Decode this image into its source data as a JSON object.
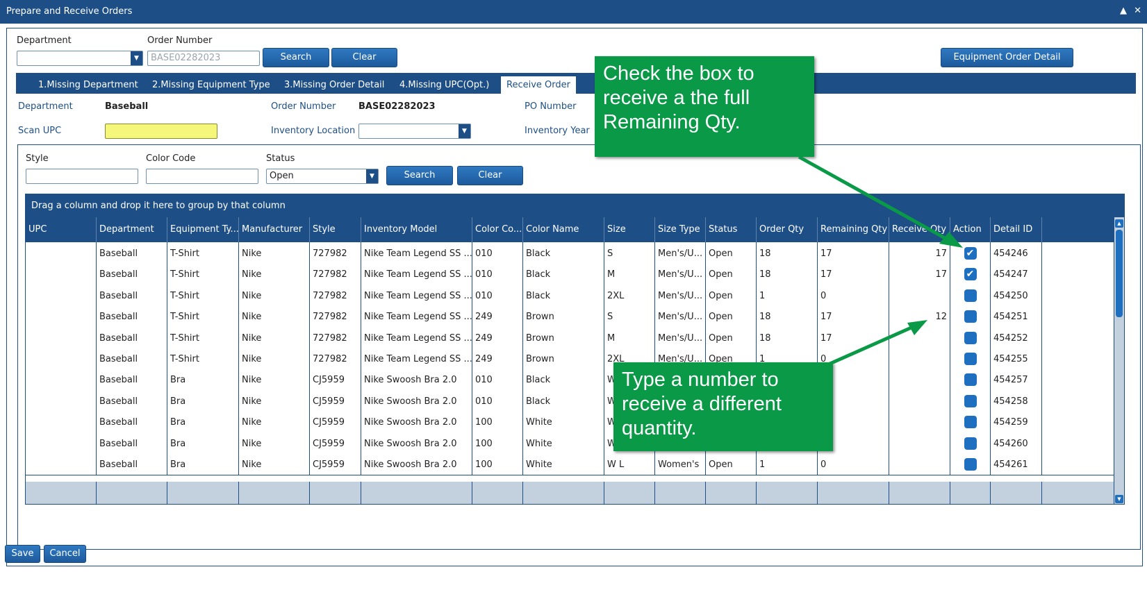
{
  "window": {
    "title": "Prepare and Receive Orders",
    "controls": [
      "▲",
      "✕"
    ]
  },
  "header": {
    "department_label": "Department",
    "department_value": "",
    "order_number_label": "Order Number",
    "order_number_placeholder": "BASE02282023",
    "search_label": "Search",
    "clear_label": "Clear",
    "equipment_detail_label": "Equipment Order Detail"
  },
  "tabs": [
    {
      "label": "1.Missing Department"
    },
    {
      "label": "2.Missing Equipment Type"
    },
    {
      "label": "3.Missing Order Detail"
    },
    {
      "label": "4.Missing UPC(Opt.)"
    },
    {
      "label": "Receive Order",
      "active": true
    }
  ],
  "info": {
    "department_label": "Department",
    "department_value": "Baseball",
    "order_number_label": "Order Number",
    "order_number_value": "BASE02282023",
    "po_number_label": "PO Number",
    "scan_upc_label": "Scan UPC",
    "inventory_location_label": "Inventory Location",
    "inventory_year_label": "Inventory Year"
  },
  "filters": {
    "style_label": "Style",
    "color_code_label": "Color Code",
    "status_label": "Status",
    "status_value": "Open",
    "search_label": "Search",
    "clear_label": "Clear"
  },
  "grid": {
    "group_hint": "Drag a column and drop it here to group by that column",
    "columns": [
      "UPC",
      "Department",
      "Equipment Ty...",
      "Manufacturer",
      "Style",
      "Inventory Model",
      "Color Co...",
      "Color Name",
      "Size",
      "Size Type",
      "Status",
      "Order Qty",
      "Remaining Qty",
      "Receive Qty",
      "Action",
      "Detail ID"
    ],
    "rows": [
      {
        "upc": "",
        "department": "Baseball",
        "equipment": "T-Shirt",
        "manufacturer": "Nike",
        "style": "727982",
        "model": "Nike Team Legend SS ...",
        "color_code": "010",
        "color_name": "Black",
        "size": "S",
        "size_type": "Men's/U...",
        "status": "Open",
        "order_qty": "18",
        "remaining_qty": "17",
        "receive_qty": "17",
        "checked": true,
        "detail_id": "454246"
      },
      {
        "upc": "",
        "department": "Baseball",
        "equipment": "T-Shirt",
        "manufacturer": "Nike",
        "style": "727982",
        "model": "Nike Team Legend SS ...",
        "color_code": "010",
        "color_name": "Black",
        "size": "M",
        "size_type": "Men's/U...",
        "status": "Open",
        "order_qty": "18",
        "remaining_qty": "17",
        "receive_qty": "17",
        "checked": true,
        "detail_id": "454247"
      },
      {
        "upc": "",
        "department": "Baseball",
        "equipment": "T-Shirt",
        "manufacturer": "Nike",
        "style": "727982",
        "model": "Nike Team Legend SS ...",
        "color_code": "010",
        "color_name": "Black",
        "size": "2XL",
        "size_type": "Men's/U...",
        "status": "Open",
        "order_qty": "1",
        "remaining_qty": "0",
        "receive_qty": "",
        "checked": false,
        "detail_id": "454250"
      },
      {
        "upc": "",
        "department": "Baseball",
        "equipment": "T-Shirt",
        "manufacturer": "Nike",
        "style": "727982",
        "model": "Nike Team Legend SS ...",
        "color_code": "249",
        "color_name": "Brown",
        "size": "S",
        "size_type": "Men's/U...",
        "status": "Open",
        "order_qty": "18",
        "remaining_qty": "17",
        "receive_qty": "12",
        "checked": false,
        "detail_id": "454251"
      },
      {
        "upc": "",
        "department": "Baseball",
        "equipment": "T-Shirt",
        "manufacturer": "Nike",
        "style": "727982",
        "model": "Nike Team Legend SS ...",
        "color_code": "249",
        "color_name": "Brown",
        "size": "M",
        "size_type": "Men's/U...",
        "status": "Open",
        "order_qty": "18",
        "remaining_qty": "17",
        "receive_qty": "",
        "checked": false,
        "detail_id": "454252"
      },
      {
        "upc": "",
        "department": "Baseball",
        "equipment": "T-Shirt",
        "manufacturer": "Nike",
        "style": "727982",
        "model": "Nike Team Legend SS ...",
        "color_code": "249",
        "color_name": "Brown",
        "size": "2XL",
        "size_type": "Men's/U...",
        "status": "Open",
        "order_qty": "1",
        "remaining_qty": "0",
        "receive_qty": "",
        "checked": false,
        "detail_id": "454255"
      },
      {
        "upc": "",
        "department": "Baseball",
        "equipment": "Bra",
        "manufacturer": "Nike",
        "style": "CJ5959",
        "model": "Nike Swoosh Bra 2.0",
        "color_code": "010",
        "color_name": "Black",
        "size": "W",
        "size_type": "",
        "status": "",
        "order_qty": "",
        "remaining_qty": "",
        "receive_qty": "",
        "checked": false,
        "detail_id": "454257"
      },
      {
        "upc": "",
        "department": "Baseball",
        "equipment": "Bra",
        "manufacturer": "Nike",
        "style": "CJ5959",
        "model": "Nike Swoosh Bra 2.0",
        "color_code": "010",
        "color_name": "Black",
        "size": "W",
        "size_type": "",
        "status": "",
        "order_qty": "",
        "remaining_qty": "",
        "receive_qty": "",
        "checked": false,
        "detail_id": "454258"
      },
      {
        "upc": "",
        "department": "Baseball",
        "equipment": "Bra",
        "manufacturer": "Nike",
        "style": "CJ5959",
        "model": "Nike Swoosh Bra 2.0",
        "color_code": "100",
        "color_name": "White",
        "size": "W",
        "size_type": "",
        "status": "",
        "order_qty": "",
        "remaining_qty": "",
        "receive_qty": "",
        "checked": false,
        "detail_id": "454259"
      },
      {
        "upc": "",
        "department": "Baseball",
        "equipment": "Bra",
        "manufacturer": "Nike",
        "style": "CJ5959",
        "model": "Nike Swoosh Bra 2.0",
        "color_code": "100",
        "color_name": "White",
        "size": "W",
        "size_type": "",
        "status": "",
        "order_qty": "",
        "remaining_qty": "",
        "receive_qty": "",
        "checked": false,
        "detail_id": "454260"
      },
      {
        "upc": "",
        "department": "Baseball",
        "equipment": "Bra",
        "manufacturer": "Nike",
        "style": "CJ5959",
        "model": "Nike Swoosh Bra 2.0",
        "color_code": "100",
        "color_name": "White",
        "size": "W L",
        "size_type": "Women's",
        "status": "Open",
        "order_qty": "1",
        "remaining_qty": "0",
        "receive_qty": "",
        "checked": false,
        "detail_id": "454261"
      }
    ]
  },
  "callouts": {
    "checkbox_tip": "Check the box to receive a the full Remaining Qty.",
    "quantity_tip": "Type a number to receive a different quantity."
  },
  "footer": {
    "save_label": "Save",
    "cancel_label": "Cancel"
  },
  "colors": {
    "primary": "#1d4f86",
    "button": "#2f79c1",
    "callout": "#0a9a47",
    "scan_highlight": "#f4f77a"
  }
}
